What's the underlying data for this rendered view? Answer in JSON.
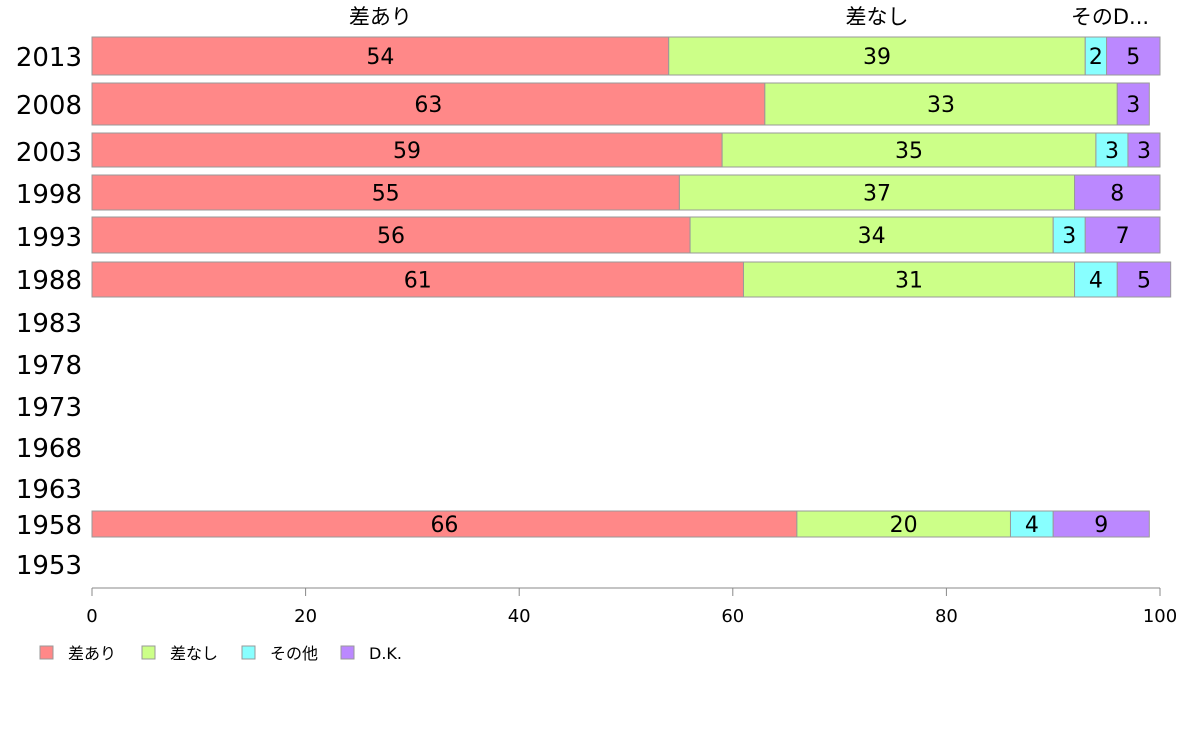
{
  "chart_data": {
    "type": "bar",
    "orientation": "horizontal",
    "stacked": true,
    "categories": [
      "2013",
      "2008",
      "2003",
      "1998",
      "1993",
      "1988",
      "1983",
      "1978",
      "1973",
      "1968",
      "1963",
      "1958",
      "1953"
    ],
    "series": [
      {
        "name": "差あり",
        "color": "#ff8888",
        "values": [
          54,
          63,
          59,
          55,
          56,
          61,
          null,
          null,
          null,
          null,
          null,
          66,
          null
        ]
      },
      {
        "name": "差なし",
        "color": "#ccff88",
        "values": [
          39,
          33,
          35,
          37,
          34,
          31,
          null,
          null,
          null,
          null,
          null,
          20,
          null
        ]
      },
      {
        "name": "その他",
        "color": "#88ffff",
        "values": [
          2,
          0,
          3,
          0,
          3,
          4,
          null,
          null,
          null,
          null,
          null,
          4,
          null
        ]
      },
      {
        "name": "D.K.",
        "color": "#bb88ff",
        "values": [
          5,
          3,
          3,
          8,
          7,
          5,
          null,
          null,
          null,
          null,
          null,
          9,
          null
        ]
      }
    ],
    "top_labels": [
      "差あり",
      "差なし",
      "そのD..."
    ],
    "xlim": [
      0,
      100
    ],
    "xticks": [
      0,
      20,
      40,
      60,
      80,
      100
    ],
    "grid": false,
    "legend_position": "bottom-left"
  }
}
